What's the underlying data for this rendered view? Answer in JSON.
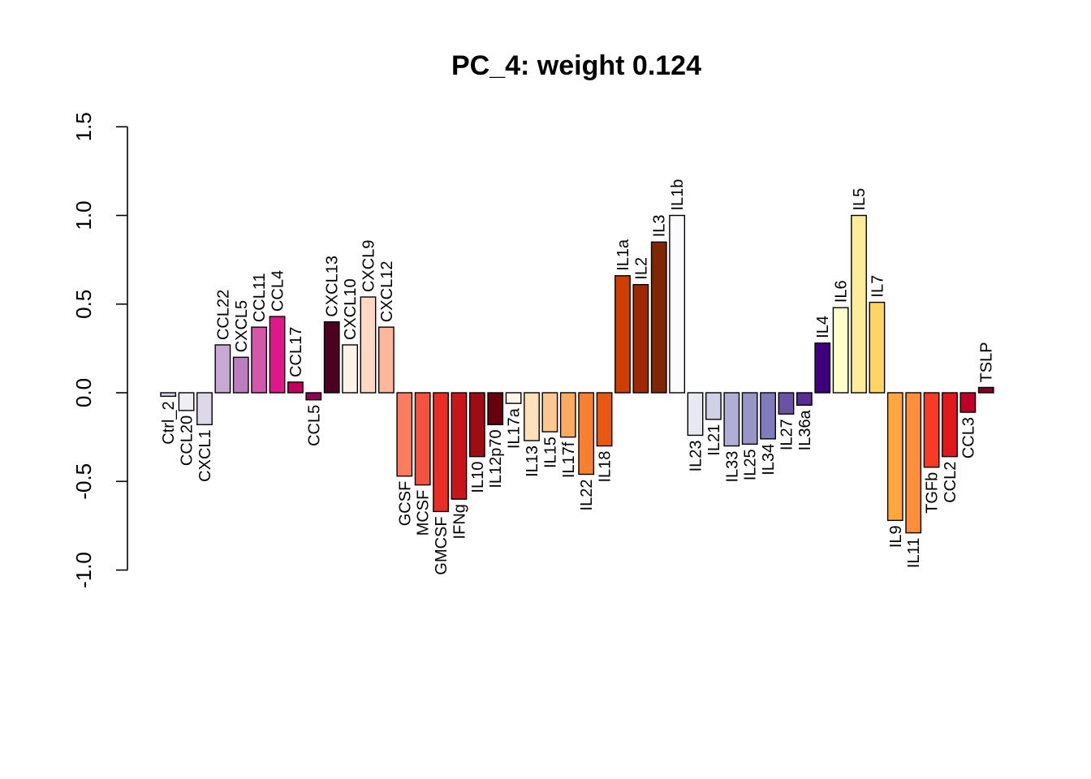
{
  "chart_data": {
    "type": "bar",
    "title": "PC_4: weight 0.124",
    "xlabel": "",
    "ylabel": "",
    "ylim": [
      -1.0,
      1.5
    ],
    "yticks": [
      -1.0,
      -0.5,
      0.0,
      0.5,
      1.0,
      1.5
    ],
    "ytick_labels": [
      "-1.0",
      "-0.5",
      "0.0",
      "0.5",
      "1.0",
      "1.5"
    ],
    "grid": false,
    "categories": [
      "Ctrl_2",
      "CCL20",
      "CXCL1",
      "CCL22",
      "CXCL5",
      "CCL11",
      "CCL4",
      "CCL17",
      "CCL5",
      "CXCL13",
      "CXCL10",
      "CXCL9",
      "CXCL12",
      "GCSF",
      "MCSF",
      "GMCSF",
      "IFNg",
      "IL10",
      "IL12p70",
      "IL17a",
      "IL13",
      "IL15",
      "IL17f",
      "IL22",
      "IL18",
      "IL1a",
      "IL2",
      "IL3",
      "IL1b",
      "IL23",
      "IL21",
      "IL33",
      "IL25",
      "IL34",
      "IL27",
      "IL36a",
      "IL4",
      "IL6",
      "IL5",
      "IL7",
      "IL9",
      "IL11",
      "TGFb",
      "CCL2",
      "CCL3",
      "TSLP"
    ],
    "values": [
      -0.02,
      -0.1,
      -0.18,
      0.27,
      0.2,
      0.37,
      0.43,
      0.06,
      -0.04,
      0.4,
      0.27,
      0.54,
      0.37,
      -0.47,
      -0.52,
      -0.67,
      -0.6,
      -0.36,
      -0.18,
      -0.06,
      -0.27,
      -0.22,
      -0.25,
      -0.46,
      -0.3,
      0.66,
      0.61,
      0.85,
      1.0,
      -0.24,
      -0.15,
      -0.3,
      -0.29,
      -0.26,
      -0.12,
      -0.07,
      0.28,
      0.48,
      1.0,
      0.51,
      -0.72,
      -0.79,
      -0.42,
      -0.36,
      -0.11,
      0.03
    ],
    "colors": [
      "#D5D1E6",
      "#EFEDF5",
      "#DCD8EA",
      "#C8A9D3",
      "#BC7DBE",
      "#D358A9",
      "#DF1889",
      "#C1015F",
      "#8E0152",
      "#4E0022",
      "#FFF3EA",
      "#FFD9C4",
      "#FCB69A",
      "#FC7D60",
      "#F3533E",
      "#E92D25",
      "#C8171C",
      "#9E0C14",
      "#67000D",
      "#FFF6EB",
      "#FEE0BB",
      "#FDC791",
      "#FDAA61",
      "#F6802F",
      "#E85810",
      "#CE3E02",
      "#9F2803",
      "#7F2704",
      "#FBFBFE",
      "#E8E8F2",
      "#D0D0E6",
      "#B0AED4",
      "#9896C5",
      "#807BBA",
      "#6C52A3",
      "#582E95",
      "#3F007D",
      "#FFFFCC",
      "#FFEC9A",
      "#FFD467",
      "#FFA73D",
      "#FD8E3C",
      "#F93A24",
      "#E1191C",
      "#BE0026",
      "#800026"
    ]
  }
}
